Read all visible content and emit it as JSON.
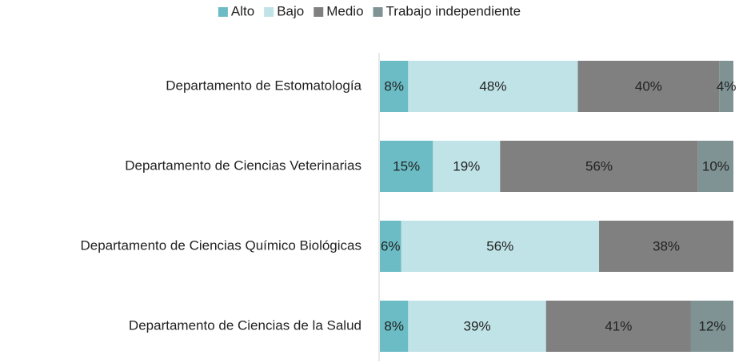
{
  "chart_data": {
    "type": "stacked-bar-horizontal",
    "categories": [
      "Departamento de Estomatología",
      "Departamento de Ciencias Veterinarias",
      "Departamento de Ciencias Químico Biológicas",
      "Departamento de Ciencias de la Salud"
    ],
    "series": [
      {
        "name": "Alto",
        "color": "#6bbcc4",
        "values": [
          8,
          15,
          6,
          8
        ],
        "value_labels": [
          "8%",
          "15%",
          "6%",
          "8%"
        ]
      },
      {
        "name": "Bajo",
        "color": "#bfe3e6",
        "values": [
          48,
          19,
          56,
          39
        ],
        "value_labels": [
          "48%",
          "19%",
          "56%",
          "39%"
        ]
      },
      {
        "name": "Medio",
        "color": "#808080",
        "values": [
          40,
          56,
          38,
          41
        ],
        "value_labels": [
          "40%",
          "56%",
          "38%",
          "41%"
        ]
      },
      {
        "name": "Trabajo independiente",
        "color": "#7f9394",
        "values": [
          4,
          10,
          null,
          12
        ],
        "value_labels": [
          "4%",
          "10%",
          null,
          "12%"
        ]
      }
    ],
    "xlim": [
      0,
      100
    ],
    "legend": "top"
  }
}
